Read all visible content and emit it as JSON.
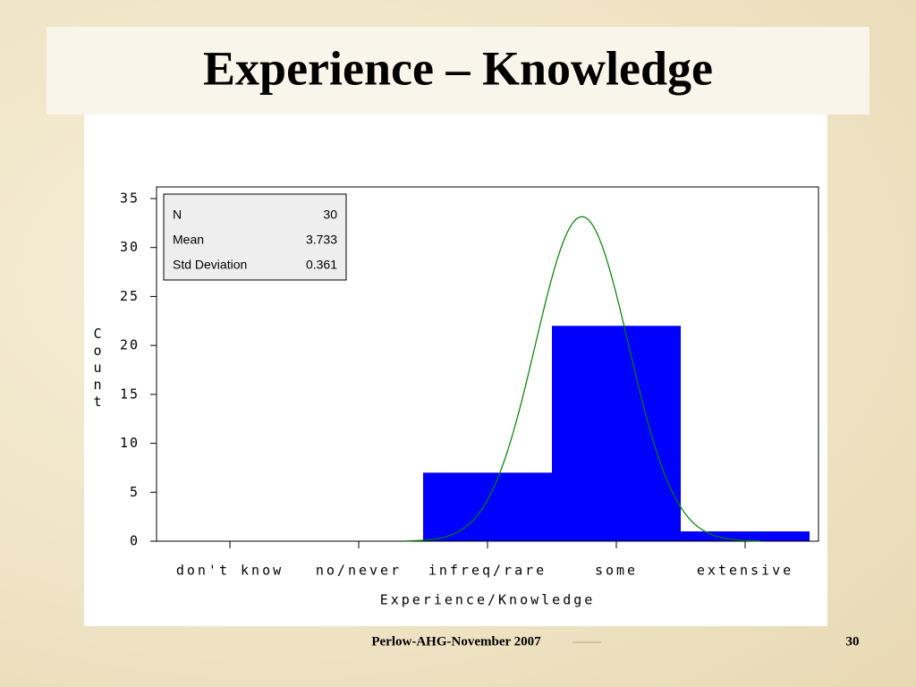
{
  "slide": {
    "title": "Experience – Knowledge",
    "footer": "Perlow-AHG-November 2007",
    "page_number": 30
  },
  "chart_data": {
    "type": "bar",
    "x_label": "Experience/Knowledge",
    "y_label": "Count",
    "categories": [
      "don't know",
      "no/never",
      "infreq/rare",
      "some",
      "extensive"
    ],
    "values": [
      0,
      0,
      7,
      22,
      1
    ],
    "color": "#0000ff",
    "ylim": [
      0,
      35
    ],
    "yticks": [
      0,
      5,
      10,
      15,
      20,
      25,
      30,
      35
    ],
    "stats": [
      {
        "label": "N",
        "value": 30
      },
      {
        "label": "Mean",
        "value": 3.733
      },
      {
        "label": "Std Deviation",
        "value": 0.361
      }
    ],
    "normal_curve": true,
    "curve_color": "#008000"
  }
}
